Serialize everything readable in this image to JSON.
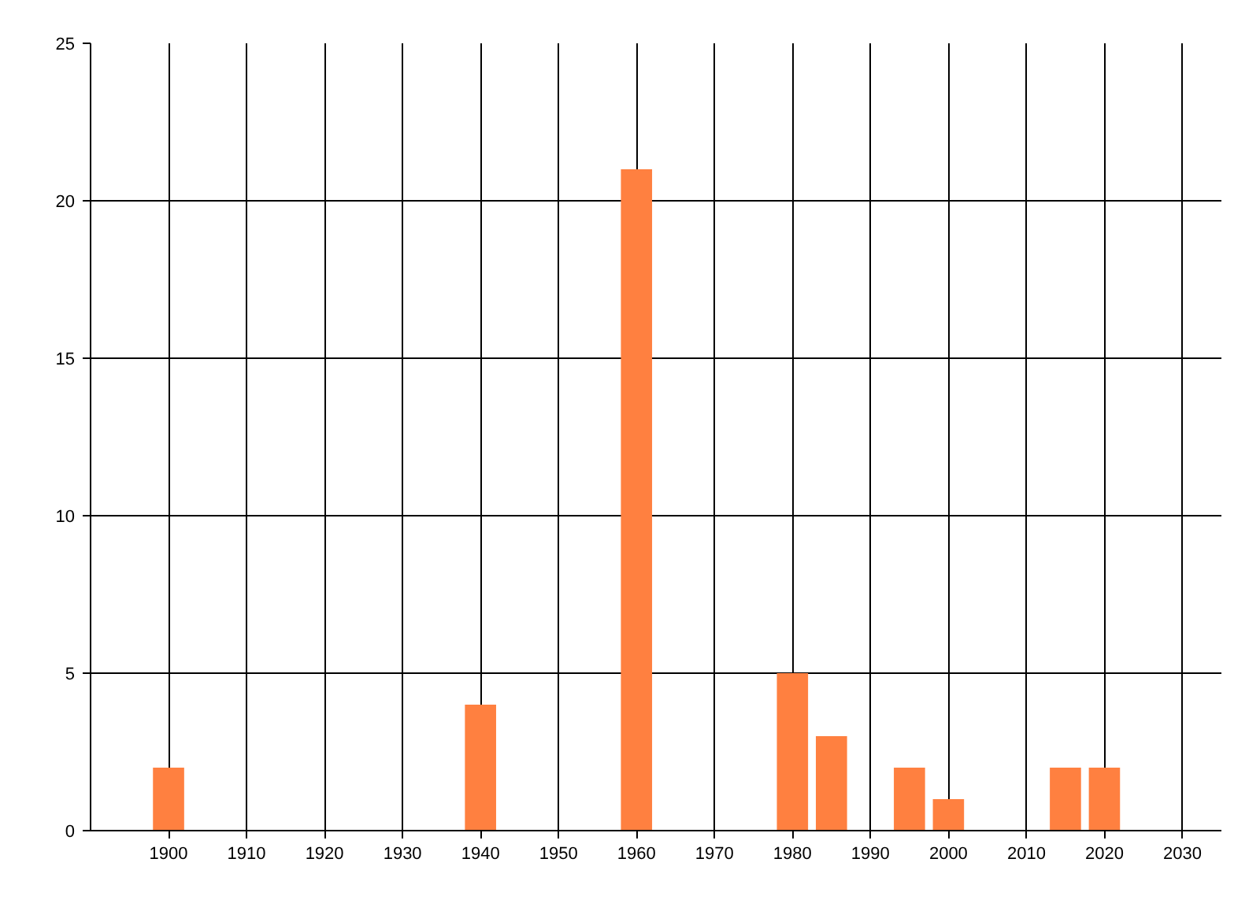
{
  "chart_data": {
    "type": "bar",
    "x": [
      1900,
      1940,
      1960,
      1980,
      1985,
      1995,
      2000,
      2015,
      2020
    ],
    "values": [
      2,
      4,
      21,
      5,
      3,
      2,
      1,
      2,
      2
    ],
    "color": "#ff8040",
    "xlim": [
      1890,
      2035
    ],
    "xticks": [
      1900,
      1910,
      1920,
      1930,
      1940,
      1950,
      1960,
      1970,
      1980,
      1990,
      2000,
      2010,
      2020,
      2030
    ],
    "ylim": [
      0,
      25
    ],
    "yticks": [
      0,
      5,
      10,
      15,
      20,
      25
    ],
    "grid": true
  }
}
